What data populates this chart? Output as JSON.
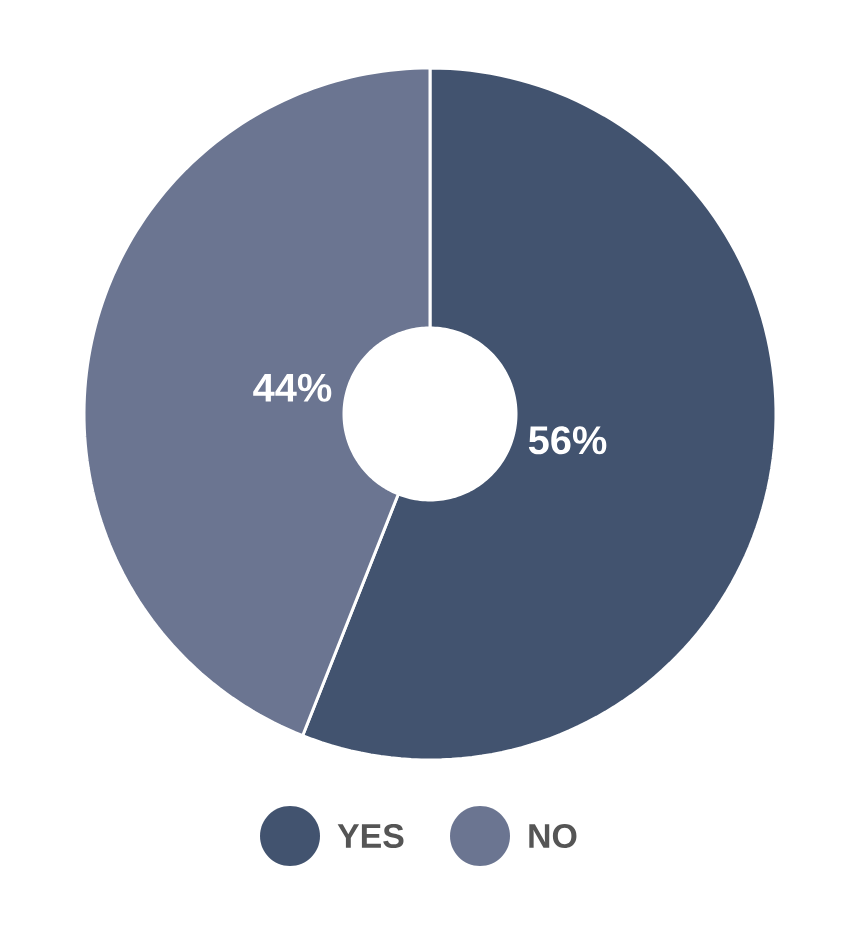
{
  "chart_data": {
    "type": "donut",
    "categories": [
      "YES",
      "NO"
    ],
    "values": [
      56,
      44
    ],
    "colors": [
      "#42536f",
      "#6b7591"
    ],
    "value_labels": [
      "56%",
      "44%"
    ],
    "legend": "bottom"
  }
}
